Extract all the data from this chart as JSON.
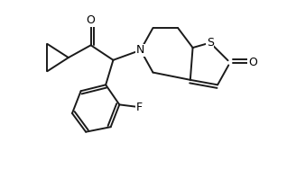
{
  "background": "#ffffff",
  "line_color": "#1a1a1a",
  "line_width": 1.4,
  "text_color": "#000000",
  "figsize": [
    3.28,
    2.08
  ],
  "dpi": 100,
  "font_size": 9.0,
  "xlim": [
    0.5,
    10.5
  ],
  "ylim": [
    1.0,
    8.5
  ]
}
